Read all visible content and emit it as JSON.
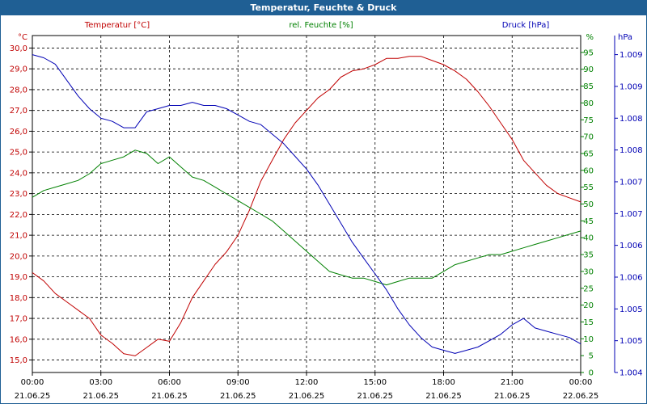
{
  "window": {
    "title": "Temperatur, Feuchte & Druck"
  },
  "colors": {
    "temperature": "#c00000",
    "humidity": "#008000",
    "pressure": "#0000b4",
    "grid": "#000000",
    "title_bar": "#1f5f94"
  },
  "chart_data": {
    "type": "line",
    "title": "Temperatur, Feuchte & Druck",
    "xlabel": "",
    "x_ticks": [
      {
        "time": "00:00",
        "date": "21.06.25"
      },
      {
        "time": "03:00",
        "date": "21.06.25"
      },
      {
        "time": "06:00",
        "date": "21.06.25"
      },
      {
        "time": "09:00",
        "date": "21.06.25"
      },
      {
        "time": "12:00",
        "date": "21.06.25"
      },
      {
        "time": "15:00",
        "date": "21.06.25"
      },
      {
        "time": "18:00",
        "date": "21.06.25"
      },
      {
        "time": "21:00",
        "date": "21.06.25"
      },
      {
        "time": "00:00",
        "date": "22.06.25"
      }
    ],
    "xlim": [
      0,
      24
    ],
    "axes": {
      "temperature": {
        "label": "Temperatur [°C]",
        "unit": "°C",
        "ylim": [
          14.4,
          30.6
        ],
        "ticks": [
          "30,0",
          "29,0",
          "28,0",
          "27,0",
          "26,0",
          "25,0",
          "24,0",
          "23,0",
          "22,0",
          "21,0",
          "20,0",
          "19,0",
          "18,0",
          "17,0",
          "16,0",
          "15,0"
        ],
        "tick_values": [
          30,
          29,
          28,
          27,
          26,
          25,
          24,
          23,
          22,
          21,
          20,
          19,
          18,
          17,
          16,
          15
        ]
      },
      "humidity": {
        "label": "rel. Feuchte [%]",
        "unit": "%",
        "ylim": [
          0,
          100
        ],
        "ticks": [
          "95",
          "90",
          "85",
          "80",
          "75",
          "70",
          "65",
          "60",
          "55",
          "50",
          "45",
          "40",
          "35",
          "30",
          "25",
          "20",
          "15",
          "10",
          "5",
          "0"
        ],
        "tick_values": [
          95,
          90,
          85,
          80,
          75,
          70,
          65,
          60,
          55,
          50,
          45,
          40,
          35,
          30,
          25,
          20,
          15,
          10,
          5,
          0
        ],
        "top_label": "%"
      },
      "pressure": {
        "label": "Druck [hPa]",
        "unit": "hPa",
        "ylim": [
          1004.0,
          1009.3
        ],
        "ticks": [
          "1.009",
          "1.009",
          "1.008",
          "1.008",
          "1.007",
          "1.007",
          "1.006",
          "1.006",
          "1.005",
          "1.005",
          "1.004"
        ],
        "tick_values": [
          1009.0,
          1008.5,
          1008.0,
          1007.5,
          1007.0,
          1006.5,
          1006.0,
          1005.5,
          1005.0,
          1004.5,
          1004.0
        ]
      }
    },
    "series": [
      {
        "name": "Temperatur [°C]",
        "axis": "temperature",
        "color": "#c00000",
        "x": [
          0,
          0.5,
          1,
          1.5,
          2,
          2.5,
          3,
          3.5,
          4,
          4.5,
          5,
          5.5,
          6,
          6.5,
          7,
          7.5,
          8,
          8.5,
          9,
          9.5,
          10,
          10.5,
          11,
          11.5,
          12,
          12.5,
          13,
          13.5,
          14,
          14.5,
          15,
          15.5,
          16,
          16.5,
          17,
          17.5,
          18,
          18.5,
          19,
          19.5,
          20,
          20.5,
          21,
          21.5,
          22,
          22.5,
          23,
          23.5,
          24
        ],
        "values": [
          19.2,
          18.8,
          18.2,
          17.8,
          17.4,
          17.0,
          16.2,
          15.8,
          15.3,
          15.2,
          15.6,
          16.0,
          15.9,
          16.8,
          18.0,
          18.8,
          19.6,
          20.2,
          21.0,
          22.2,
          23.6,
          24.6,
          25.6,
          26.4,
          27.0,
          27.6,
          28.0,
          28.6,
          28.9,
          29.0,
          29.2,
          29.5,
          29.5,
          29.6,
          29.6,
          29.4,
          29.2,
          28.9,
          28.5,
          27.9,
          27.2,
          26.4,
          25.6,
          24.6,
          24.0,
          23.4,
          23.0,
          22.8,
          22.6
        ]
      },
      {
        "name": "rel. Feuchte [%]",
        "axis": "humidity",
        "color": "#008000",
        "x": [
          0,
          0.5,
          1,
          1.5,
          2,
          2.5,
          3,
          3.5,
          4,
          4.5,
          5,
          5.5,
          6,
          6.5,
          7,
          7.5,
          8,
          8.5,
          9,
          9.5,
          10,
          10.5,
          11,
          11.5,
          12,
          12.5,
          13,
          13.5,
          14,
          14.5,
          15,
          15.5,
          16,
          16.5,
          17,
          17.5,
          18,
          18.5,
          19,
          19.5,
          20,
          20.5,
          21,
          21.5,
          22,
          22.5,
          23,
          23.5,
          24
        ],
        "values": [
          52,
          54,
          55,
          56,
          57,
          59,
          62,
          63,
          64,
          66,
          65,
          62,
          64,
          61,
          58,
          57,
          55,
          53,
          51,
          49,
          47,
          45,
          42,
          39,
          36,
          33,
          30,
          29,
          28,
          28,
          27,
          26,
          27,
          28,
          28,
          28,
          30,
          32,
          33,
          34,
          35,
          35,
          36,
          37,
          38,
          39,
          40,
          41,
          42
        ]
      },
      {
        "name": "Druck [hPa]",
        "axis": "pressure",
        "color": "#0000b4",
        "x": [
          0,
          0.5,
          1,
          1.5,
          2,
          2.5,
          3,
          3.5,
          4,
          4.5,
          5,
          5.5,
          6,
          6.5,
          7,
          7.5,
          8,
          8.5,
          9,
          9.5,
          10,
          10.5,
          11,
          11.5,
          12,
          12.5,
          13,
          13.5,
          14,
          14.5,
          15,
          15.5,
          16,
          16.5,
          17,
          17.5,
          18,
          18.5,
          19,
          19.5,
          20,
          20.5,
          21,
          21.5,
          22,
          22.5,
          23,
          23.5,
          24
        ],
        "values": [
          1009.0,
          1008.95,
          1008.85,
          1008.6,
          1008.35,
          1008.15,
          1008.0,
          1007.95,
          1007.85,
          1007.85,
          1008.1,
          1008.15,
          1008.2,
          1008.2,
          1008.25,
          1008.2,
          1008.2,
          1008.15,
          1008.05,
          1007.95,
          1007.9,
          1007.75,
          1007.6,
          1007.4,
          1007.2,
          1006.95,
          1006.65,
          1006.35,
          1006.05,
          1005.8,
          1005.55,
          1005.3,
          1005.0,
          1004.75,
          1004.55,
          1004.4,
          1004.35,
          1004.3,
          1004.35,
          1004.4,
          1004.5,
          1004.6,
          1004.75,
          1004.85,
          1004.7,
          1004.65,
          1004.6,
          1004.55,
          1004.45
        ]
      }
    ]
  }
}
